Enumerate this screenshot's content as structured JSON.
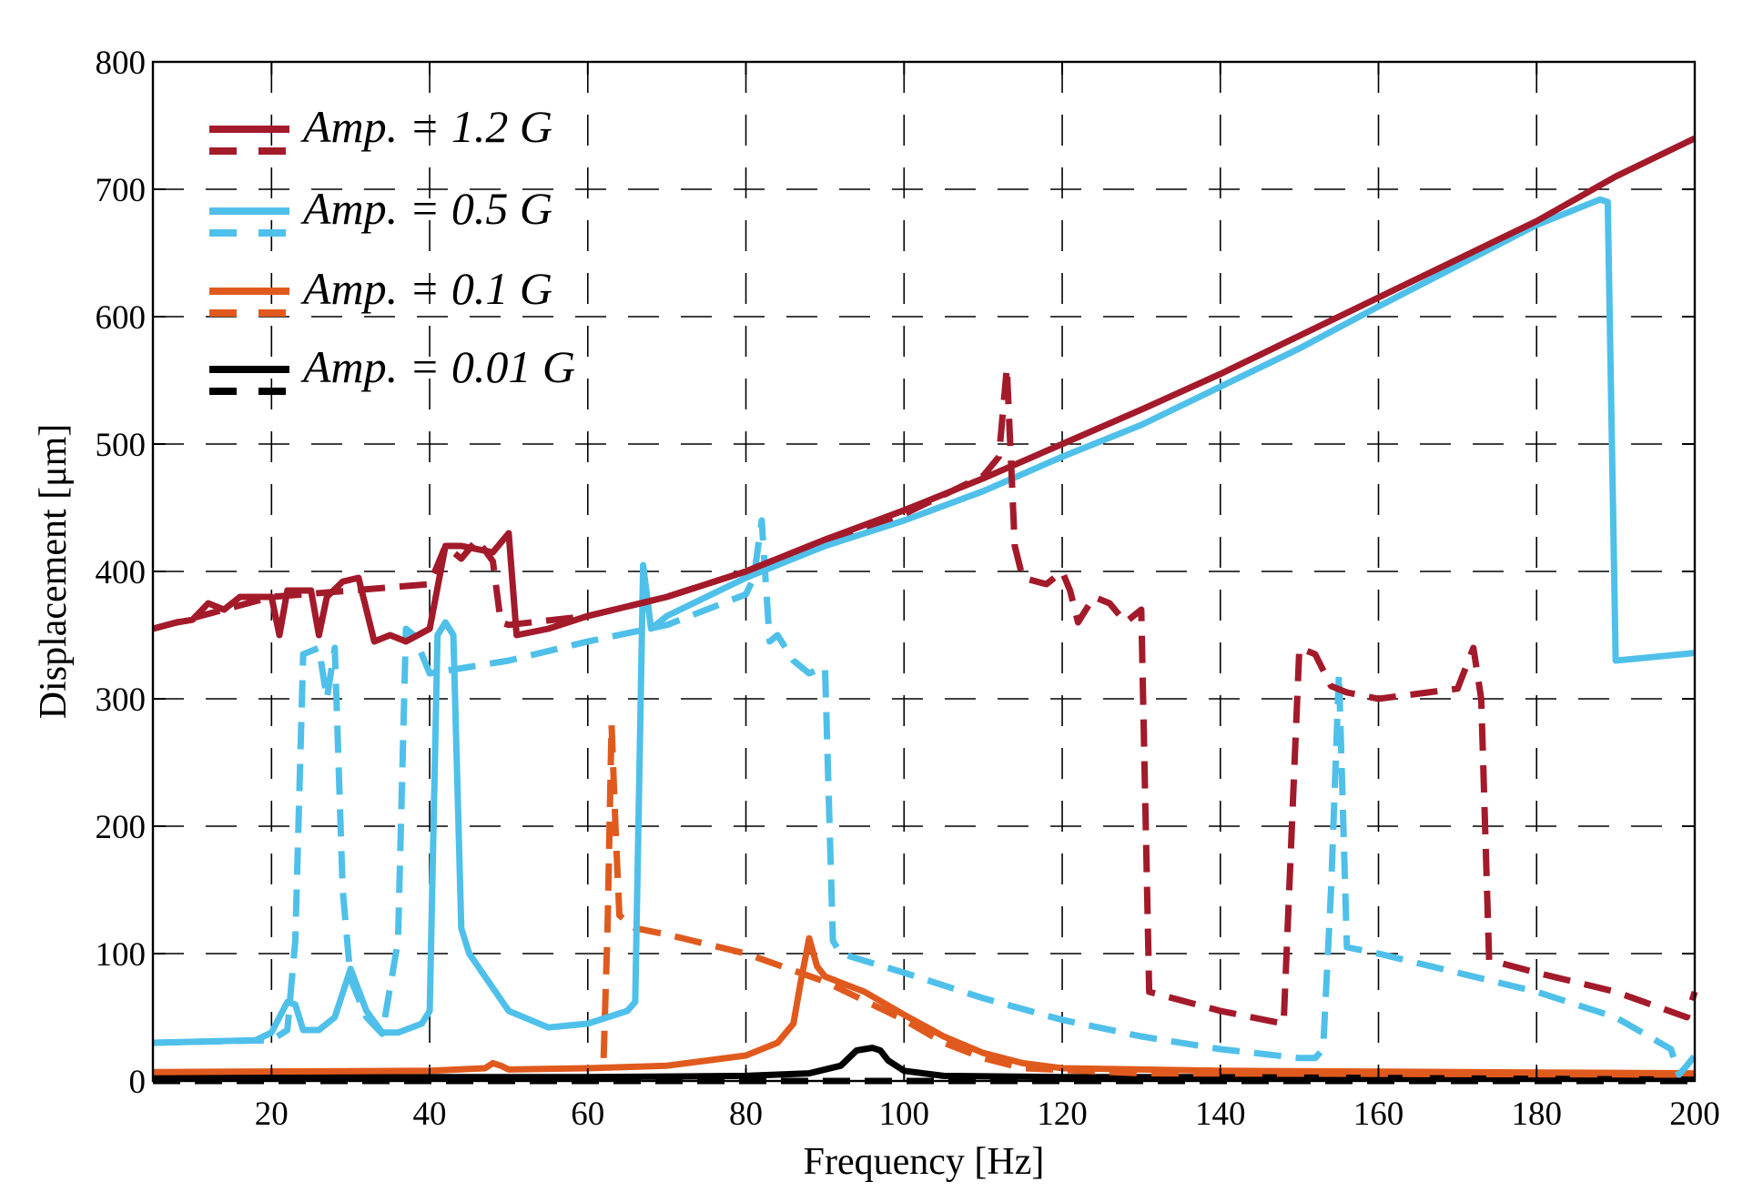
{
  "chart_data": {
    "type": "line",
    "title": "",
    "xlabel": "Frequency [Hz]",
    "ylabel": "Displacement [μm]",
    "xlim": [
      5,
      200
    ],
    "ylim": [
      0,
      800
    ],
    "xticks": [
      20,
      40,
      60,
      80,
      100,
      120,
      140,
      160,
      180,
      200
    ],
    "yticks": [
      0,
      100,
      200,
      300,
      400,
      500,
      600,
      700,
      800
    ],
    "xtick_labels": [
      "20",
      "40",
      "60",
      "80",
      "100",
      "120",
      "140",
      "160",
      "180",
      "200"
    ],
    "ytick_labels": [
      "0",
      "100",
      "200",
      "300",
      "400",
      "500",
      "600",
      "700",
      "800"
    ],
    "grid": true,
    "legend_position": "top-left",
    "legend": [
      {
        "label": "Amp. = 1.2 G",
        "color": "#A31A2A"
      },
      {
        "label": "Amp. = 0.5 G",
        "color": "#4FC0EA"
      },
      {
        "label": "Amp. = 0.1 G",
        "color": "#E05A1E"
      },
      {
        "label": "Amp. = 0.01 G",
        "color": "#000000"
      }
    ],
    "series": [
      {
        "name": "Amp. = 0.01 G (dashed)",
        "color": "#000000",
        "style": "dashed",
        "points": [
          [
            5,
            0
          ],
          [
            200,
            0
          ]
        ]
      },
      {
        "name": "Amp. = 0.01 G (solid)",
        "color": "#000000",
        "style": "solid",
        "points": [
          [
            5,
            3
          ],
          [
            60,
            3
          ],
          [
            80,
            4
          ],
          [
            88,
            6
          ],
          [
            92,
            12
          ],
          [
            94,
            24
          ],
          [
            95,
            25
          ],
          [
            96,
            26
          ],
          [
            97,
            24
          ],
          [
            98,
            16
          ],
          [
            100,
            8
          ],
          [
            105,
            4
          ],
          [
            120,
            3
          ],
          [
            200,
            3
          ]
        ]
      },
      {
        "name": "Amp. = 0.1 G (dashed)",
        "color": "#E05A1E",
        "style": "dashed",
        "points": [
          [
            62,
            18
          ],
          [
            62.5,
            120
          ],
          [
            63,
            280
          ],
          [
            63.5,
            200
          ],
          [
            64,
            130
          ],
          [
            66,
            120
          ],
          [
            70,
            115
          ],
          [
            80,
            100
          ],
          [
            90,
            78
          ],
          [
            100,
            48
          ],
          [
            105,
            30
          ],
          [
            110,
            18
          ],
          [
            115,
            10
          ],
          [
            130,
            6
          ],
          [
            200,
            5
          ]
        ]
      },
      {
        "name": "Amp. = 0.1 G (solid)",
        "color": "#E05A1E",
        "style": "solid",
        "points": [
          [
            5,
            7
          ],
          [
            40,
            8
          ],
          [
            47,
            10
          ],
          [
            48,
            14
          ],
          [
            49,
            12
          ],
          [
            50,
            9
          ],
          [
            60,
            10
          ],
          [
            70,
            12
          ],
          [
            80,
            20
          ],
          [
            84,
            30
          ],
          [
            86,
            45
          ],
          [
            87,
            80
          ],
          [
            88,
            112
          ],
          [
            89,
            90
          ],
          [
            90,
            82
          ],
          [
            95,
            70
          ],
          [
            100,
            52
          ],
          [
            105,
            35
          ],
          [
            110,
            22
          ],
          [
            115,
            14
          ],
          [
            120,
            10
          ],
          [
            140,
            8
          ],
          [
            200,
            6
          ]
        ]
      },
      {
        "name": "Amp. = 0.5 G (dashed)",
        "color": "#4FC0EA",
        "style": "dashed",
        "points": [
          [
            5,
            30
          ],
          [
            20,
            32
          ],
          [
            22,
            40
          ],
          [
            23,
            110
          ],
          [
            24,
            335
          ],
          [
            26,
            340
          ],
          [
            27,
            300
          ],
          [
            28,
            340
          ],
          [
            29,
            150
          ],
          [
            30,
            80
          ],
          [
            32,
            50
          ],
          [
            34,
            37
          ],
          [
            36,
            110
          ],
          [
            37,
            355
          ],
          [
            38,
            350
          ],
          [
            40,
            320
          ],
          [
            50,
            330
          ],
          [
            60,
            345
          ],
          [
            70,
            358
          ],
          [
            75,
            370
          ],
          [
            80,
            382
          ],
          [
            81,
            395
          ],
          [
            82,
            440
          ],
          [
            83,
            345
          ],
          [
            84,
            350
          ],
          [
            86,
            330
          ],
          [
            88,
            320
          ],
          [
            90,
            325
          ],
          [
            91,
            110
          ],
          [
            92,
            100
          ],
          [
            100,
            85
          ],
          [
            110,
            65
          ],
          [
            120,
            48
          ],
          [
            130,
            35
          ],
          [
            140,
            25
          ],
          [
            150,
            18
          ],
          [
            152,
            18
          ],
          [
            153,
            25
          ],
          [
            154,
            150
          ],
          [
            155,
            320
          ],
          [
            156,
            105
          ],
          [
            160,
            100
          ],
          [
            170,
            85
          ],
          [
            180,
            70
          ],
          [
            190,
            50
          ],
          [
            197,
            25
          ],
          [
            198,
            5
          ],
          [
            199,
            12
          ],
          [
            200,
            20
          ]
        ]
      },
      {
        "name": "Amp. = 0.5 G (solid)",
        "color": "#4FC0EA",
        "style": "solid",
        "points": [
          [
            5,
            30
          ],
          [
            18,
            32
          ],
          [
            20,
            38
          ],
          [
            22,
            62
          ],
          [
            23,
            60
          ],
          [
            24,
            40
          ],
          [
            26,
            40
          ],
          [
            28,
            50
          ],
          [
            30,
            88
          ],
          [
            32,
            55
          ],
          [
            34,
            38
          ],
          [
            36,
            38
          ],
          [
            39,
            45
          ],
          [
            40,
            55
          ],
          [
            41,
            350
          ],
          [
            42,
            360
          ],
          [
            43,
            350
          ],
          [
            44,
            120
          ],
          [
            45,
            100
          ],
          [
            50,
            55
          ],
          [
            55,
            42
          ],
          [
            60,
            45
          ],
          [
            65,
            55
          ],
          [
            66,
            62
          ],
          [
            67,
            405
          ],
          [
            68,
            355
          ],
          [
            70,
            365
          ],
          [
            80,
            395
          ],
          [
            90,
            420
          ],
          [
            100,
            440
          ],
          [
            110,
            463
          ],
          [
            120,
            490
          ],
          [
            130,
            515
          ],
          [
            140,
            545
          ],
          [
            150,
            575
          ],
          [
            160,
            608
          ],
          [
            170,
            640
          ],
          [
            180,
            672
          ],
          [
            188,
            692
          ],
          [
            189,
            690
          ],
          [
            190,
            330
          ],
          [
            200,
            336
          ]
        ]
      },
      {
        "name": "Amp. = 1.2 G (dashed)",
        "color": "#A31A2A",
        "style": "dashed",
        "points": [
          [
            5,
            355
          ],
          [
            20,
            380
          ],
          [
            30,
            385
          ],
          [
            40,
            390
          ],
          [
            42,
            420
          ],
          [
            44,
            410
          ],
          [
            46,
            425
          ],
          [
            48,
            408
          ],
          [
            49,
            360
          ],
          [
            50,
            358
          ],
          [
            60,
            365
          ],
          [
            70,
            380
          ],
          [
            80,
            400
          ],
          [
            90,
            425
          ],
          [
            100,
            445
          ],
          [
            110,
            475
          ],
          [
            112,
            490
          ],
          [
            113,
            560
          ],
          [
            114,
            420
          ],
          [
            115,
            395
          ],
          [
            118,
            390
          ],
          [
            120,
            400
          ],
          [
            121,
            385
          ],
          [
            122,
            360
          ],
          [
            124,
            380
          ],
          [
            126,
            375
          ],
          [
            128,
            360
          ],
          [
            130,
            370
          ],
          [
            131,
            70
          ],
          [
            140,
            55
          ],
          [
            148,
            45
          ],
          [
            150,
            340
          ],
          [
            152,
            335
          ],
          [
            154,
            310
          ],
          [
            156,
            305
          ],
          [
            160,
            300
          ],
          [
            170,
            308
          ],
          [
            172,
            340
          ],
          [
            173,
            300
          ],
          [
            174,
            95
          ],
          [
            180,
            85
          ],
          [
            190,
            70
          ],
          [
            199,
            50
          ],
          [
            200,
            70
          ]
        ]
      },
      {
        "name": "Amp. = 1.2 G (solid)",
        "color": "#A31A2A",
        "style": "solid",
        "points": [
          [
            5,
            355
          ],
          [
            8,
            360
          ],
          [
            10,
            362
          ],
          [
            12,
            375
          ],
          [
            14,
            370
          ],
          [
            16,
            380
          ],
          [
            20,
            380
          ],
          [
            21,
            350
          ],
          [
            22,
            385
          ],
          [
            25,
            385
          ],
          [
            26,
            350
          ],
          [
            27,
            380
          ],
          [
            29,
            392
          ],
          [
            31,
            395
          ],
          [
            33,
            345
          ],
          [
            35,
            350
          ],
          [
            37,
            345
          ],
          [
            40,
            355
          ],
          [
            42,
            420
          ],
          [
            44,
            420
          ],
          [
            48,
            415
          ],
          [
            50,
            430
          ],
          [
            51,
            350
          ],
          [
            55,
            355
          ],
          [
            60,
            365
          ],
          [
            70,
            380
          ],
          [
            80,
            400
          ],
          [
            90,
            425
          ],
          [
            100,
            448
          ],
          [
            110,
            473
          ],
          [
            120,
            500
          ],
          [
            130,
            527
          ],
          [
            140,
            555
          ],
          [
            150,
            585
          ],
          [
            160,
            615
          ],
          [
            170,
            645
          ],
          [
            180,
            675
          ],
          [
            190,
            710
          ],
          [
            200,
            740
          ]
        ]
      }
    ]
  }
}
